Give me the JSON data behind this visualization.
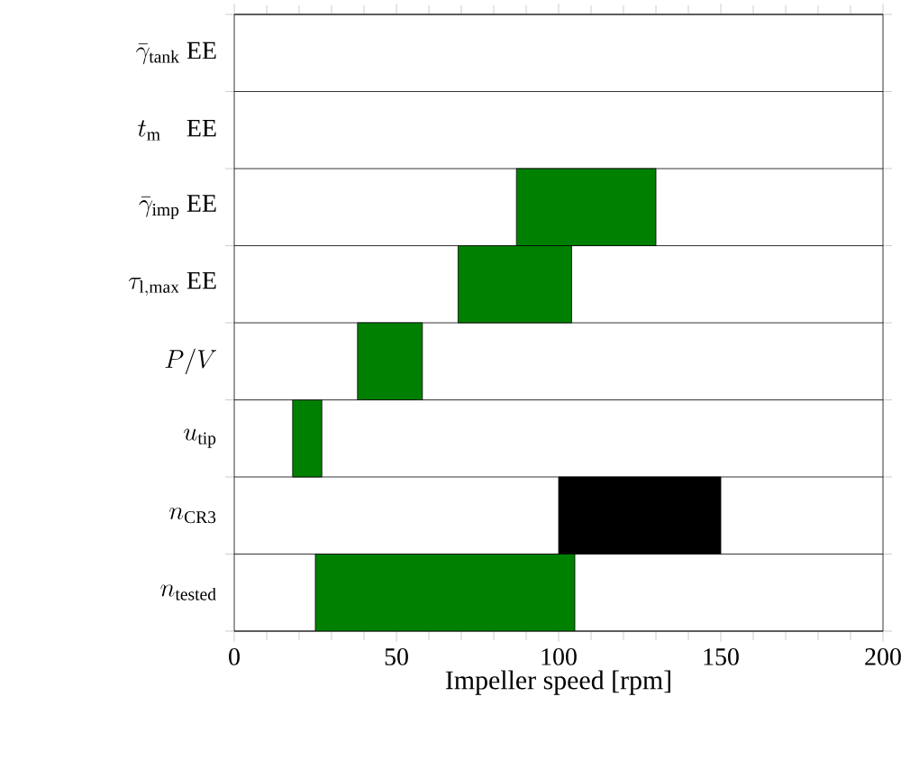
{
  "chart_data": {
    "type": "bar",
    "orientation": "horizontal",
    "xlabel": "Impeller speed [rpm]",
    "categories": [
      "\\bar{\\gamma}_{\\mathrm{tank}}\\ \\mathrm{EE}",
      "t_{\\mathrm{m}}\\quad \\mathrm{EE}",
      "\\bar{\\gamma}_{\\mathrm{imp}}\\ \\mathrm{EE}",
      "\\tau_{\\mathrm{l,max}}\\ \\mathrm{EE}",
      "P/V",
      "u_{\\mathrm{tip}}",
      "n_{\\mathrm{CR3}}",
      "n_{\\mathrm{tested}}"
    ],
    "base": [
      null,
      null,
      87,
      69,
      38,
      18,
      100,
      25
    ],
    "values": [
      null,
      null,
      43,
      35,
      20,
      9,
      50,
      80
    ],
    "colors": [
      "#008000",
      "#008000",
      "#008000",
      "#008000",
      "#008000",
      "#008000",
      "#000000",
      "#008000"
    ],
    "xlim": [
      0,
      200
    ],
    "xticks": [
      0,
      50,
      100,
      150,
      200
    ]
  }
}
